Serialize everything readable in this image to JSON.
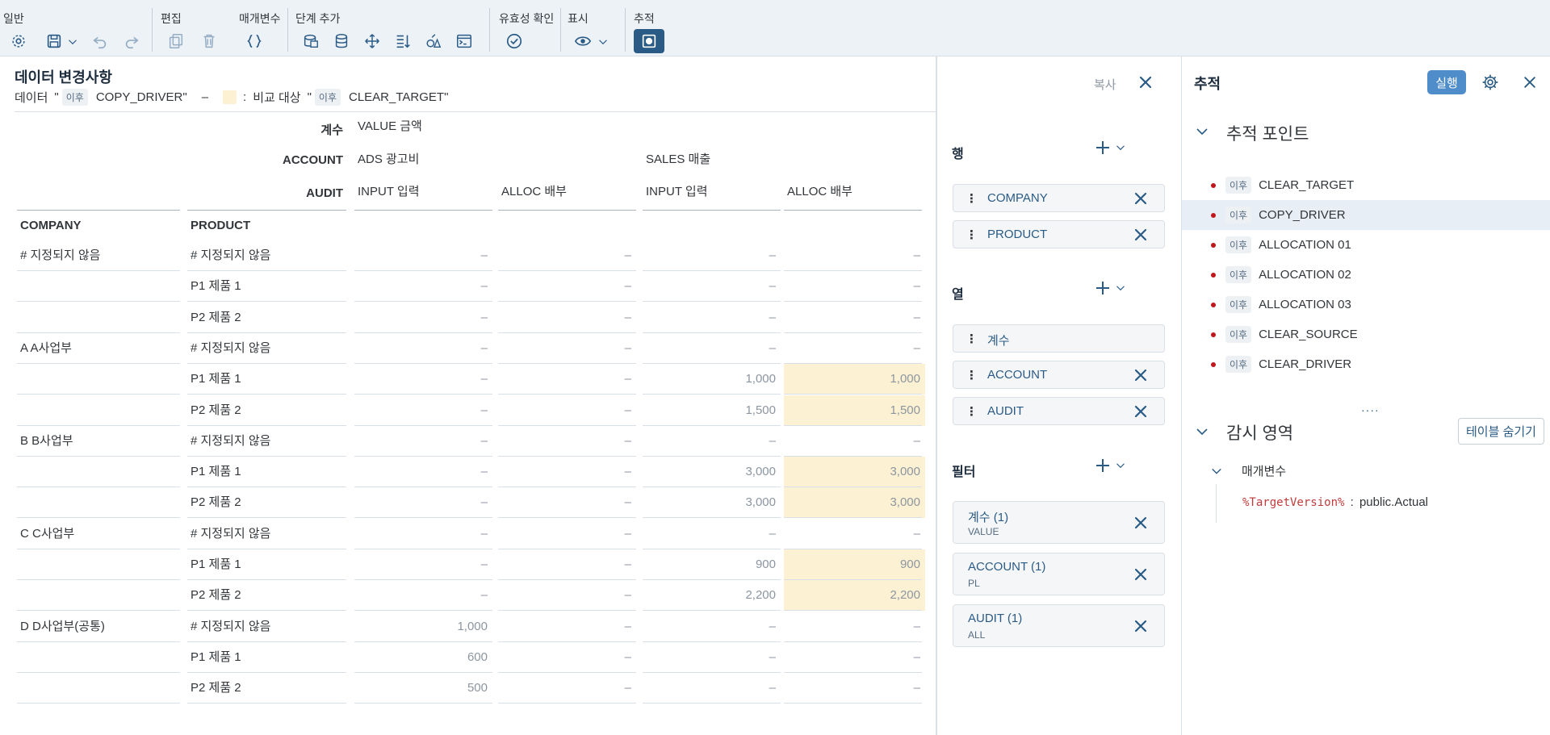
{
  "toolbar": {
    "groups": [
      {
        "label": "일반",
        "icons": [
          "settings-icon",
          "save-icon",
          "undo-icon",
          "redo-icon"
        ]
      },
      {
        "label": "편집",
        "icons": [
          "copy-icon",
          "delete-icon"
        ]
      },
      {
        "label": "매개변수",
        "icons": [
          "braces-icon"
        ]
      },
      {
        "label": "단계 추가",
        "icons": [
          "add-data-icon",
          "database-icon",
          "move-icon",
          "sort-down-icon",
          "formula-icon",
          "terminal-icon"
        ]
      },
      {
        "label": "유효성 확인",
        "icons": [
          "check-circle-icon"
        ]
      },
      {
        "label": "표시",
        "icons": [
          "eye-icon"
        ]
      },
      {
        "label": "추적",
        "icons": [
          "trace-record-icon"
        ]
      }
    ]
  },
  "changes": {
    "title": "데이터 변경사항",
    "sub_prefix": "데이터",
    "quote_open": "\"",
    "chip_after": "이후",
    "source": "COPY_DRIVER\"",
    "dash": "–",
    "colon": ":",
    "compare_label": "비교 대상",
    "quote_open2": "\"",
    "chip_after2": "이후",
    "target": "CLEAR_TARGET\"",
    "copy_label": "복사",
    "highlight_color": "#fdf1d3"
  },
  "grid": {
    "header_rows": {
      "measure_label": "계수",
      "measure_value": "VALUE 금액",
      "account_label": "ACCOUNT",
      "account_values": [
        "ADS 광고비",
        "SALES 매출"
      ],
      "audit_label": "AUDIT",
      "audit_values": [
        "INPUT 입력",
        "ALLOC 배부",
        "INPUT 입력",
        "ALLOC 배부"
      ]
    },
    "row_headers": [
      "COMPANY",
      "PRODUCT"
    ],
    "dash": "–",
    "rows": [
      {
        "company": "# 지정되지 않음",
        "product": "# 지정되지 않음",
        "values": [
          "–",
          "–",
          "–",
          "–"
        ],
        "hl": [
          false,
          false,
          false,
          false
        ]
      },
      {
        "company": "",
        "product": "P1 제품 1",
        "values": [
          "–",
          "–",
          "–",
          "–"
        ],
        "hl": [
          false,
          false,
          false,
          false
        ]
      },
      {
        "company": "",
        "product": "P2 제품 2",
        "values": [
          "–",
          "–",
          "–",
          "–"
        ],
        "hl": [
          false,
          false,
          false,
          false
        ]
      },
      {
        "company": "A A사업부",
        "product": "# 지정되지 않음",
        "values": [
          "–",
          "–",
          "–",
          "–"
        ],
        "hl": [
          false,
          false,
          false,
          false
        ]
      },
      {
        "company": "",
        "product": "P1 제품 1",
        "values": [
          "–",
          "–",
          "1,000",
          "1,000"
        ],
        "hl": [
          false,
          false,
          false,
          true
        ]
      },
      {
        "company": "",
        "product": "P2 제품 2",
        "values": [
          "–",
          "–",
          "1,500",
          "1,500"
        ],
        "hl": [
          false,
          false,
          false,
          true
        ]
      },
      {
        "company": "B B사업부",
        "product": "# 지정되지 않음",
        "values": [
          "–",
          "–",
          "–",
          "–"
        ],
        "hl": [
          false,
          false,
          false,
          false
        ]
      },
      {
        "company": "",
        "product": "P1 제품 1",
        "values": [
          "–",
          "–",
          "3,000",
          "3,000"
        ],
        "hl": [
          false,
          false,
          false,
          true
        ]
      },
      {
        "company": "",
        "product": "P2 제품 2",
        "values": [
          "–",
          "–",
          "3,000",
          "3,000"
        ],
        "hl": [
          false,
          false,
          false,
          true
        ]
      },
      {
        "company": "C C사업부",
        "product": "# 지정되지 않음",
        "values": [
          "–",
          "–",
          "–",
          "–"
        ],
        "hl": [
          false,
          false,
          false,
          false
        ]
      },
      {
        "company": "",
        "product": "P1 제품 1",
        "values": [
          "–",
          "–",
          "900",
          "900"
        ],
        "hl": [
          false,
          false,
          false,
          true
        ]
      },
      {
        "company": "",
        "product": "P2 제품 2",
        "values": [
          "–",
          "–",
          "2,200",
          "2,200"
        ],
        "hl": [
          false,
          false,
          false,
          true
        ]
      },
      {
        "company": "D D사업부(공통)",
        "product": "# 지정되지 않음",
        "values": [
          "1,000",
          "–",
          "–",
          "–"
        ],
        "hl": [
          false,
          false,
          false,
          false
        ]
      },
      {
        "company": "",
        "product": "P1 제품 1",
        "values": [
          "600",
          "–",
          "–",
          "–"
        ],
        "hl": [
          false,
          false,
          false,
          false
        ]
      },
      {
        "company": "",
        "product": "P2 제품 2",
        "values": [
          "500",
          "–",
          "–",
          "–"
        ],
        "hl": [
          false,
          false,
          false,
          false
        ]
      }
    ]
  },
  "builder": {
    "rows_label": "행",
    "rows": [
      "COMPANY",
      "PRODUCT"
    ],
    "columns_label": "열",
    "columns": [
      {
        "label": "계수",
        "removable": false
      },
      {
        "label": "ACCOUNT",
        "removable": true
      },
      {
        "label": "AUDIT",
        "removable": true
      }
    ],
    "filters_label": "필터",
    "filters": [
      {
        "label": "계수 (1)",
        "sub": "VALUE"
      },
      {
        "label": "ACCOUNT (1)",
        "sub": "PL"
      },
      {
        "label": "AUDIT (1)",
        "sub": "ALL"
      }
    ]
  },
  "trace": {
    "title": "추적",
    "run_label": "실행",
    "points_title": "추적 포인트",
    "point_chip": "이후",
    "points": [
      "CLEAR_TARGET",
      "COPY_DRIVER",
      "ALLOCATION 01",
      "ALLOCATION 02",
      "ALLOCATION 03",
      "CLEAR_SOURCE",
      "CLEAR_DRIVER"
    ],
    "selected_index": 1,
    "handle": "····",
    "watch_title": "감시 영역",
    "hide_table_label": "테이블 숨기기",
    "params_label": "매개변수",
    "param_key": "%TargetVersion%",
    "param_sep": ":",
    "param_value": "public.Actual",
    "dot_color": "#c0161c"
  }
}
